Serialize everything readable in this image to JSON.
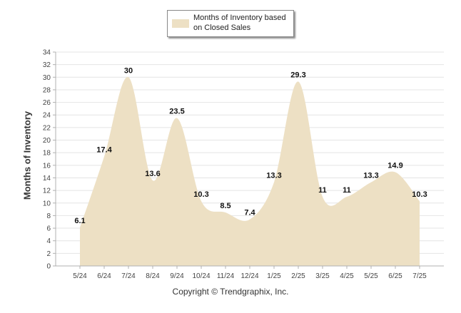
{
  "chart_data": {
    "type": "area",
    "categories": [
      "5/24",
      "6/24",
      "7/24",
      "8/24",
      "9/24",
      "10/24",
      "11/24",
      "12/24",
      "1/25",
      "2/25",
      "3/25",
      "4/25",
      "5/25",
      "6/25",
      "7/25"
    ],
    "series": [
      {
        "name": "Months of Inventory based on Closed Sales",
        "values": [
          6.1,
          17.4,
          30,
          13.6,
          23.5,
          10.3,
          8.5,
          7.4,
          13.3,
          29.3,
          11,
          11,
          13.3,
          14.9,
          10.3
        ]
      }
    ],
    "data_labels": [
      "6.1",
      "17.4",
      "30",
      "13.6",
      "23.5",
      "10.3",
      "8.5",
      "7.4",
      "13.3",
      "29.3",
      "11",
      "11",
      "13.3",
      "14.9",
      "10.3"
    ],
    "title": "",
    "xlabel": "",
    "ylabel": "Months of Inventory",
    "ylim": [
      0,
      34
    ],
    "yticks": [
      0,
      2,
      4,
      6,
      8,
      10,
      12,
      14,
      16,
      18,
      20,
      22,
      24,
      26,
      28,
      30,
      32,
      34
    ],
    "grid": true,
    "legend_placement": "top-center",
    "fill_color": "#ede0c4",
    "grid_color": "#e4e4e4",
    "axis_color": "#b0b0b0"
  },
  "legend": {
    "label": "Months of Inventory based on Closed Sales"
  },
  "footer": {
    "copyright": "Copyright © Trendgraphix, Inc."
  }
}
